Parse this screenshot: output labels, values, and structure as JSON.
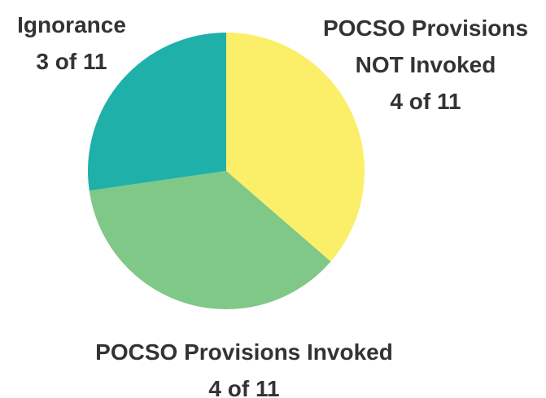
{
  "chart_data": {
    "type": "pie",
    "categories": [
      "POCSO Provisions NOT Invoked",
      "POCSO Provisions Invoked",
      "Ignorance"
    ],
    "values": [
      4,
      4,
      3
    ],
    "value_labels": [
      "4 of 11",
      "4 of 11",
      "3 of 11"
    ],
    "colors": [
      "#fbef6a",
      "#80c888",
      "#20b0aa"
    ]
  }
}
